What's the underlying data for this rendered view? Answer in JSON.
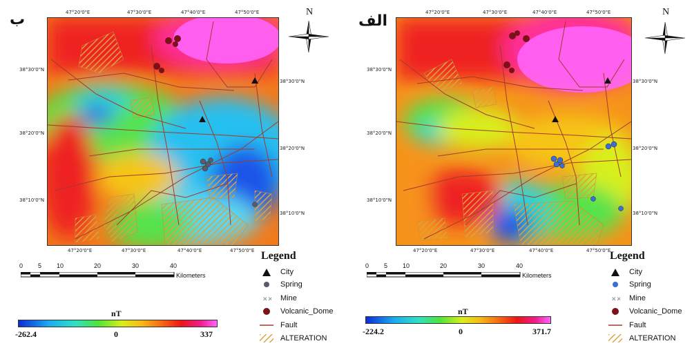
{
  "left_panel": {
    "letter": "ب",
    "top_ticks": [
      "47°20'0\"E",
      "47°30'0\"E",
      "47°40'0\"E",
      "47°50'0\"E"
    ],
    "bottom_ticks": [
      "47°20'0\"E",
      "47°30'0\"E",
      "47°40'0\"E",
      "47°50'0\"E"
    ],
    "left_ticks": [
      "38°30'0\"N",
      "38°20'0\"N",
      "38°10'0\"N"
    ],
    "right_ticks": [
      "38°30'0\"N",
      "38°20'0\"N",
      "38°10'0\"N"
    ],
    "colorbar": {
      "unit": "nT",
      "min": "-262.4",
      "mid": "0",
      "max": "337"
    }
  },
  "right_panel": {
    "letter": "الف",
    "top_ticks": [
      "47°20'0\"E",
      "47°30'0\"E",
      "47°40'0\"E",
      "47°50'0\"E"
    ],
    "bottom_ticks": [
      "47°20'0\"E",
      "47°30'0\"E",
      "47°40'0\"E",
      "47°50'0\"E"
    ],
    "left_ticks": [
      "38°30'0\"N",
      "38°20'0\"N",
      "38°10'0\"N"
    ],
    "right_ticks": [
      "38°30'0\"N",
      "38°20'0\"N",
      "38°10'0\"N"
    ],
    "colorbar": {
      "unit": "nT",
      "min": "-224.2",
      "mid": "0",
      "max": "371.7"
    }
  },
  "north_label": "N",
  "scalebar": {
    "ticks": [
      "0",
      "5",
      "10",
      "20",
      "30",
      "40"
    ],
    "unit": "Kilometers"
  },
  "legend": {
    "title": "Legend",
    "items": [
      "City",
      "Spring",
      "Mine",
      "Volcanic_Dome",
      "Fault",
      "ALTERATION"
    ]
  },
  "colors": {
    "spring_left": "#5a5a6e",
    "spring_right": "#3b6fd6",
    "volcanic_dome": "#7a1218",
    "fault": "#a23a2a",
    "alteration": "#d9a441"
  }
}
